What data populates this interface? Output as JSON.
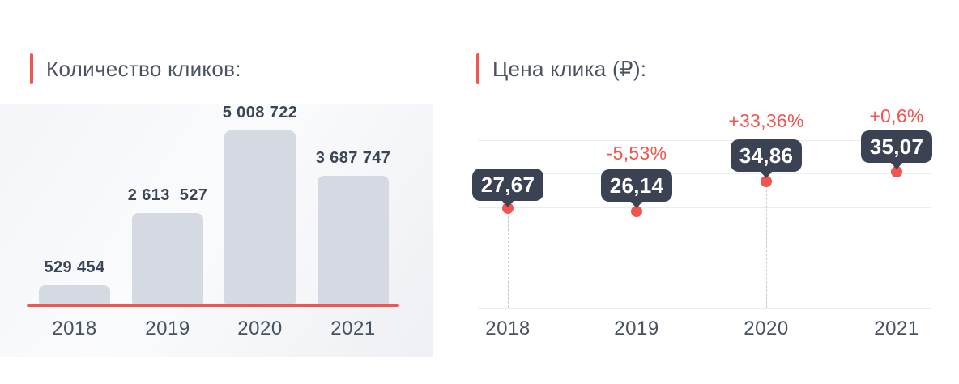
{
  "colors": {
    "accent_red": "#f2544e",
    "badge_dark": "#3b4254",
    "bar_fill": "#d5d9e2",
    "gridline": "#eaecef",
    "title_text": "#4a5361",
    "axis_text": "#49525f",
    "value_text": "#3c4555",
    "panel_bg_top": "#fafbfd",
    "panel_bg_bottom": "#edf0f4"
  },
  "chart_data": [
    {
      "type": "bar",
      "title": "Количество кликов:",
      "categories": [
        "2018",
        "2019",
        "2020",
        "2021"
      ],
      "values": [
        529454,
        2613527,
        5008722,
        3687747
      ],
      "value_labels": [
        "529 454",
        "2 613  527",
        "5 008 722",
        "3 687 747"
      ],
      "xlabel": "",
      "ylabel": "",
      "ylim": [
        0,
        5008722
      ],
      "grid": false,
      "legend": "none",
      "bar_color": "#d5d9e2",
      "baseline_color": "#f2544e"
    },
    {
      "type": "line",
      "title": "Цена клика (₽):",
      "categories": [
        "2018",
        "2019",
        "2020",
        "2021"
      ],
      "values": [
        27.67,
        26.14,
        34.86,
        35.07
      ],
      "value_labels": [
        "27,67",
        "26,14",
        "34,86",
        "35,07"
      ],
      "change_labels": [
        "",
        "-5,53%",
        "+33,36%",
        "+0,6%"
      ],
      "currency": "₽",
      "xlabel": "",
      "ylabel": "",
      "grid": true,
      "gridline_count": 6,
      "legend": "none",
      "point_color": "#f2544e",
      "badge_color": "#3b4254",
      "markers": "dot-with-badge"
    }
  ]
}
